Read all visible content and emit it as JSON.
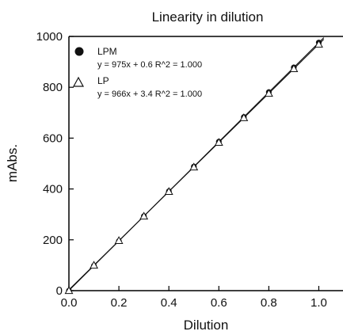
{
  "chart_data": {
    "type": "scatter",
    "title": "Linearity in dilution",
    "xlabel": "Dilution",
    "ylabel": "mAbs.",
    "xlim": [
      0,
      1.1
    ],
    "ylim": [
      0,
      1000
    ],
    "xticks": [
      0.0,
      0.2,
      0.4,
      0.6,
      0.8,
      1.0
    ],
    "xtick_labels": [
      "0.0",
      "0.2",
      "0.4",
      "0.6",
      "0.8",
      "1.0"
    ],
    "yticks": [
      0,
      200,
      400,
      600,
      800,
      1000
    ],
    "ytick_labels": [
      "0",
      "200",
      "400",
      "600",
      "800",
      "1000"
    ],
    "grid": false,
    "legend_position": "top-left",
    "series": [
      {
        "name": "LPM",
        "marker": "filled-circle",
        "equation": "y = 975x + 0.6 R^2 = 1.000",
        "slope": 975,
        "intercept": 0.6,
        "x": [
          0.0,
          0.1,
          0.2,
          0.3,
          0.4,
          0.5,
          0.6,
          0.7,
          0.8,
          0.9,
          1.0
        ],
        "y": [
          0,
          98,
          195,
          293,
          391,
          488,
          586,
          683,
          781,
          878,
          976
        ]
      },
      {
        "name": "LP",
        "marker": "open-triangle",
        "equation": "y = 966x + 3.4 R^2 = 1.000",
        "slope": 966,
        "intercept": 3.4,
        "x": [
          0.0,
          0.1,
          0.2,
          0.3,
          0.4,
          0.5,
          0.6,
          0.7,
          0.8,
          0.9,
          1.0
        ],
        "y": [
          0,
          100,
          197,
          293,
          390,
          486,
          583,
          680,
          776,
          873,
          969
        ]
      }
    ],
    "colors": {
      "marks": "#111111",
      "axis": "#000000",
      "background": "#ffffff"
    }
  }
}
